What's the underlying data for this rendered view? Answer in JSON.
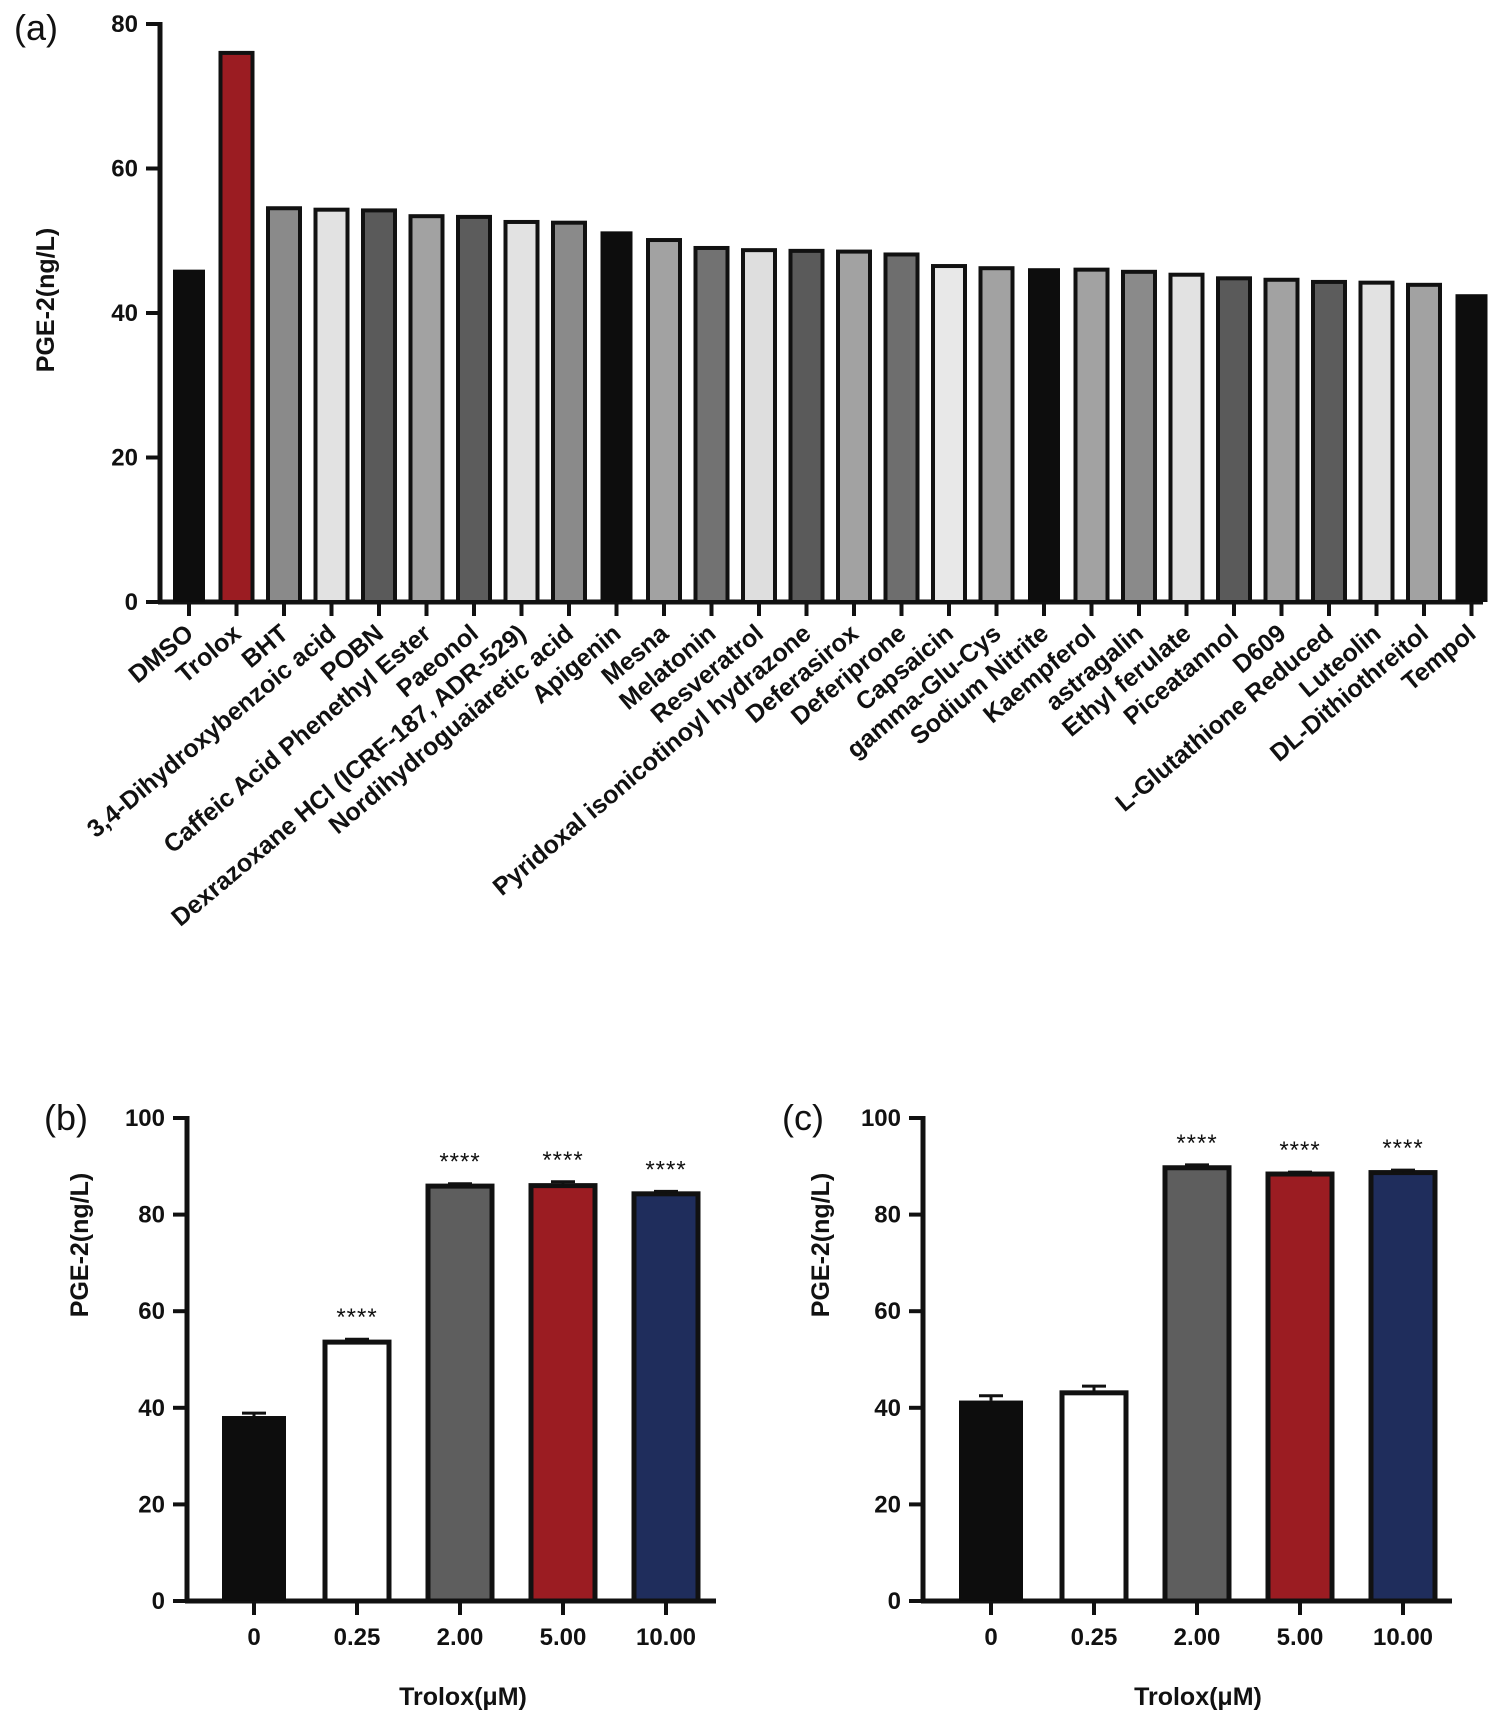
{
  "chart_data": [
    {
      "panel": "(a)",
      "type": "bar",
      "ylabel": "PGE-2(ng/L)",
      "ylim": [
        0,
        80
      ],
      "yticks": [
        0,
        20,
        40,
        60,
        80
      ],
      "categories": [
        "DMSO",
        "Trolox",
        "BHT",
        "3,4-Dihydroxybenzoic acid",
        "POBN",
        "Caffeic Acid Phenethyl Ester",
        "Paeonol",
        "Dexrazoxane HCl (ICRF-187, ADR-529)",
        "Nordihydroguaiaretic acid",
        "Apigenin",
        "Mesna",
        "Melatonin",
        "Resveratrol",
        "Pyridoxal isonicotinoyl hydrazone",
        "Deferasirox",
        "Deferiprone",
        "Capsaicin",
        "gamma-Glu-Cys",
        "Sodium Nitrite",
        "Kaempferol",
        "astragalin",
        "Ethyl ferulate",
        "Piceatannol",
        "D609",
        "L-Glutathione Reduced",
        "Luteolin",
        "DL-Dithiothreitol",
        "Tempol"
      ],
      "values": [
        46.0,
        76.0,
        54.5,
        54.3,
        54.2,
        53.4,
        53.3,
        52.6,
        52.5,
        51.3,
        50.1,
        49.0,
        48.7,
        48.6,
        48.5,
        48.1,
        46.5,
        46.2,
        46.2,
        46.0,
        45.7,
        45.3,
        44.8,
        44.6,
        44.3,
        44.2,
        43.9,
        42.6
      ],
      "colors": [
        "#0d0d0d",
        "#9b1c22",
        "#8a8a8a",
        "#e2e2e2",
        "#5a5a5a",
        "#a2a2a2",
        "#5c5c5c",
        "#e2e2e2",
        "#8a8a8a",
        "#0d0d0d",
        "#a2a2a2",
        "#727272",
        "#dedede",
        "#5a5a5a",
        "#a2a2a2",
        "#6e6e6e",
        "#e8e8e8",
        "#a2a2a2",
        "#0d0d0d",
        "#a2a2a2",
        "#8a8a8a",
        "#e2e2e2",
        "#5a5a5a",
        "#a2a2a2",
        "#5c5c5c",
        "#e2e2e2",
        "#a2a2a2",
        "#0d0d0d"
      ]
    },
    {
      "panel": "(b)",
      "type": "bar",
      "xlabel": "Trolox(μM)",
      "ylabel": "PGE-2(ng/L)",
      "ylim": [
        0,
        100
      ],
      "yticks": [
        0,
        20,
        40,
        60,
        80,
        100
      ],
      "categories": [
        "0",
        "0.25",
        "2.00",
        "5.00",
        "10.00"
      ],
      "values": [
        38.3,
        53.6,
        85.9,
        86.0,
        84.3
      ],
      "errors": [
        0.6,
        0.6,
        0.5,
        0.8,
        0.5
      ],
      "annotations": [
        "",
        "****",
        "****",
        "****",
        "****"
      ],
      "colors": [
        "#0d0d0d",
        "#ffffff",
        "#5e5e5e",
        "#9b1c22",
        "#1f2d5c"
      ]
    },
    {
      "panel": "(c)",
      "type": "bar",
      "xlabel": "Trolox(μM)",
      "ylabel": "PGE-2(ng/L)",
      "ylim": [
        0,
        100
      ],
      "yticks": [
        0,
        20,
        40,
        60,
        80,
        100
      ],
      "categories": [
        "0",
        "0.25",
        "2.00",
        "5.00",
        "10.00"
      ],
      "values": [
        41.5,
        43.1,
        89.7,
        88.4,
        88.7
      ],
      "errors": [
        1.0,
        1.4,
        0.6,
        0.4,
        0.5
      ],
      "annotations": [
        "",
        "",
        "****",
        "****",
        "****"
      ],
      "colors": [
        "#0d0d0d",
        "#ffffff",
        "#5e5e5e",
        "#9b1c22",
        "#1f2d5c"
      ]
    }
  ]
}
